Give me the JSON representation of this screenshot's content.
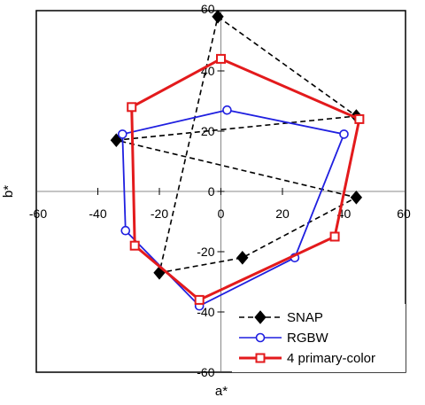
{
  "chart_data": {
    "type": "scatter",
    "xlabel": "a*",
    "ylabel": "b*",
    "xlim": [
      -60,
      60
    ],
    "ylim": [
      -60,
      60
    ],
    "x_ticks": [
      -60,
      -40,
      -20,
      0,
      20,
      40,
      60
    ],
    "y_ticks": [
      -60,
      -40,
      -20,
      0,
      20,
      40,
      60
    ],
    "grid": false,
    "legend_position": "bottom-right",
    "series": [
      {
        "name": "SNAP",
        "color": "#000000",
        "line_style": "dashed",
        "marker": "diamond",
        "x": [
          -1,
          44,
          -34,
          44,
          7,
          -20,
          -1
        ],
        "y": [
          58,
          25,
          17,
          -2,
          -22,
          -27,
          58
        ]
      },
      {
        "name": "RGBW",
        "color": "#1f1fe0",
        "line_style": "solid",
        "marker": "circle",
        "x": [
          2,
          40,
          24,
          -7,
          -31,
          -32,
          2
        ],
        "y": [
          27,
          19,
          -22,
          -38,
          -13,
          19,
          27
        ]
      },
      {
        "name": "4 primary-color",
        "color": "#e31a1c",
        "line_style": "solid",
        "marker": "square",
        "x": [
          0,
          45,
          37,
          -7,
          -28,
          -29,
          0
        ],
        "y": [
          44,
          24,
          -15,
          -36,
          -18,
          28,
          44
        ]
      }
    ]
  }
}
